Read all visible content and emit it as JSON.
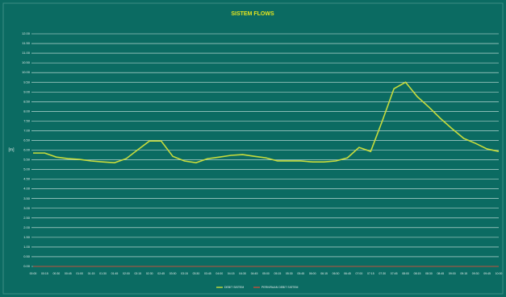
{
  "chart_data": {
    "type": "line",
    "title": "SISTEM FLOWS",
    "y_label": "[m]",
    "categories": [
      "00:00",
      "00:15",
      "00:30",
      "00:45",
      "01:00",
      "01:15",
      "01:30",
      "01:45",
      "02:00",
      "02:15",
      "02:30",
      "02:45",
      "03:00",
      "03:15",
      "03:30",
      "03:45",
      "04:00",
      "04:15",
      "04:30",
      "04:45",
      "05:00",
      "05:15",
      "05:30",
      "05:45",
      "06:00",
      "06:15",
      "06:30",
      "06:45",
      "07:00",
      "07:15",
      "07:30",
      "07:45",
      "08:00",
      "08:15",
      "08:30",
      "08:45",
      "09:00",
      "09:15",
      "09:30",
      "09:45",
      "10:00"
    ],
    "series": [
      {
        "name": "DEBIT SISTEM",
        "color": "#c8dc3c",
        "values": [
          5.85,
          5.85,
          5.64,
          5.56,
          5.52,
          5.44,
          5.39,
          5.35,
          5.56,
          6.02,
          6.47,
          6.47,
          5.68,
          5.44,
          5.35,
          5.56,
          5.64,
          5.73,
          5.77,
          5.68,
          5.6,
          5.44,
          5.44,
          5.44,
          5.39,
          5.39,
          5.44,
          5.6,
          6.14,
          5.93,
          7.51,
          9.17,
          9.5,
          8.76,
          8.22,
          7.63,
          7.1,
          6.6,
          6.35,
          6.06,
          5.93
        ]
      },
      {
        "name": "PERKIRAAN DEBIT SISTEM",
        "color": "#c0503c",
        "values": [
          0,
          0,
          0,
          0,
          0,
          0,
          0,
          0,
          0,
          0,
          0,
          0,
          0,
          0,
          0,
          0,
          0,
          0,
          0,
          0,
          0,
          0,
          0,
          0,
          0,
          0,
          0,
          0,
          0,
          0,
          0,
          0,
          0,
          0,
          0,
          0,
          0,
          0,
          0,
          0,
          0
        ]
      }
    ],
    "ylim": [
      0,
      12
    ],
    "yticks": [
      {
        "value": 0,
        "label": "0.00"
      },
      {
        "value": 0.5,
        "label": "0.50"
      },
      {
        "value": 1,
        "label": "1.00"
      },
      {
        "value": 1.5,
        "label": "1.50"
      },
      {
        "value": 2,
        "label": "2.00"
      },
      {
        "value": 2.5,
        "label": "2.50"
      },
      {
        "value": 3,
        "label": "3.00"
      },
      {
        "value": 3.5,
        "label": "3.50"
      },
      {
        "value": 4,
        "label": "4.00"
      },
      {
        "value": 4.5,
        "label": "4.50"
      },
      {
        "value": 5,
        "label": "5.00"
      },
      {
        "value": 5.5,
        "label": "5.50"
      },
      {
        "value": 6,
        "label": "6.00"
      },
      {
        "value": 6.5,
        "label": "6.50"
      },
      {
        "value": 7,
        "label": "7.00"
      },
      {
        "value": 7.5,
        "label": "7.50"
      },
      {
        "value": 8,
        "label": "8.00"
      },
      {
        "value": 8.5,
        "label": "8.50"
      },
      {
        "value": 9,
        "label": "9.00"
      },
      {
        "value": 9.5,
        "label": "9.50"
      },
      {
        "value": 10,
        "label": "10.00"
      },
      {
        "value": 10.5,
        "label": "10.50"
      },
      {
        "value": 11,
        "label": "11.00"
      },
      {
        "value": 11.5,
        "label": "11.50"
      },
      {
        "value": 12,
        "label": "12.00"
      }
    ],
    "grid": true
  }
}
